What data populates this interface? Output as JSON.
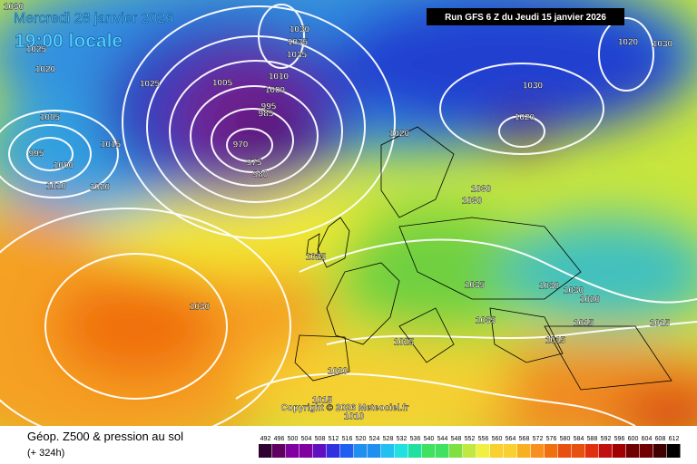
{
  "header": {
    "date": "Mercredi 28 janvier 2026",
    "time": "19:00 locale",
    "run": "Run GFS 6 Z du Jeudi 15 janvier 2026"
  },
  "copyright": "Copyright © 2026 Meteociel.fr",
  "footer": {
    "title": "Géop. Z500 & pression au sol",
    "lead": "(+ 324h)"
  },
  "scale": [
    492,
    496,
    500,
    504,
    508,
    512,
    516,
    520,
    524,
    528,
    532,
    536,
    540,
    544,
    548,
    552,
    556,
    560,
    564,
    568,
    572,
    576,
    580,
    584,
    588,
    592,
    596,
    600,
    604,
    608,
    612
  ],
  "isobars": [
    "1030",
    "1025",
    "1020",
    "1025",
    "1005",
    "1015",
    "995",
    "1000",
    "1010",
    "1020",
    "1005",
    "1010",
    "1000",
    "995",
    "985",
    "970",
    "975",
    "980",
    "1030",
    "1035",
    "1035",
    "1030",
    "1020",
    "1020",
    "1020",
    "1030",
    "1030",
    "1030",
    "1025",
    "1030",
    "1035",
    "1030",
    "1030",
    "1020",
    "1015",
    "1015",
    "1035",
    "1025",
    "1015",
    "1020",
    "1015",
    "1010"
  ]
}
